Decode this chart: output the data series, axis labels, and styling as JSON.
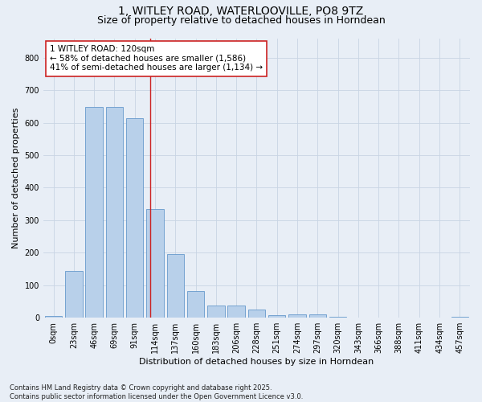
{
  "title_line1": "1, WITLEY ROAD, WATERLOOVILLE, PO8 9TZ",
  "title_line2": "Size of property relative to detached houses in Horndean",
  "xlabel": "Distribution of detached houses by size in Horndean",
  "ylabel": "Number of detached properties",
  "bar_labels": [
    "0sqm",
    "23sqm",
    "46sqm",
    "69sqm",
    "91sqm",
    "114sqm",
    "137sqm",
    "160sqm",
    "183sqm",
    "206sqm",
    "228sqm",
    "251sqm",
    "274sqm",
    "297sqm",
    "320sqm",
    "343sqm",
    "366sqm",
    "388sqm",
    "411sqm",
    "434sqm",
    "457sqm"
  ],
  "bar_values": [
    5,
    145,
    648,
    648,
    615,
    335,
    197,
    82,
    38,
    38,
    25,
    8,
    10,
    10,
    3,
    0,
    0,
    0,
    0,
    0,
    2
  ],
  "bar_color": "#b8d0ea",
  "bar_edge_color": "#6699cc",
  "grid_color": "#c8d4e4",
  "background_color": "#e8eef6",
  "vline_color": "#cc2222",
  "vline_x": 4.78,
  "annotation_text": "1 WITLEY ROAD: 120sqm\n← 58% of detached houses are smaller (1,586)\n41% of semi-detached houses are larger (1,134) →",
  "annotation_box_facecolor": "#ffffff",
  "annotation_box_edgecolor": "#cc2222",
  "ylim": [
    0,
    860
  ],
  "yticks": [
    0,
    100,
    200,
    300,
    400,
    500,
    600,
    700,
    800
  ],
  "footnote": "Contains HM Land Registry data © Crown copyright and database right 2025.\nContains public sector information licensed under the Open Government Licence v3.0.",
  "title_fontsize": 10,
  "subtitle_fontsize": 9,
  "axis_label_fontsize": 8,
  "tick_fontsize": 7,
  "annotation_fontsize": 7.5,
  "footnote_fontsize": 6
}
